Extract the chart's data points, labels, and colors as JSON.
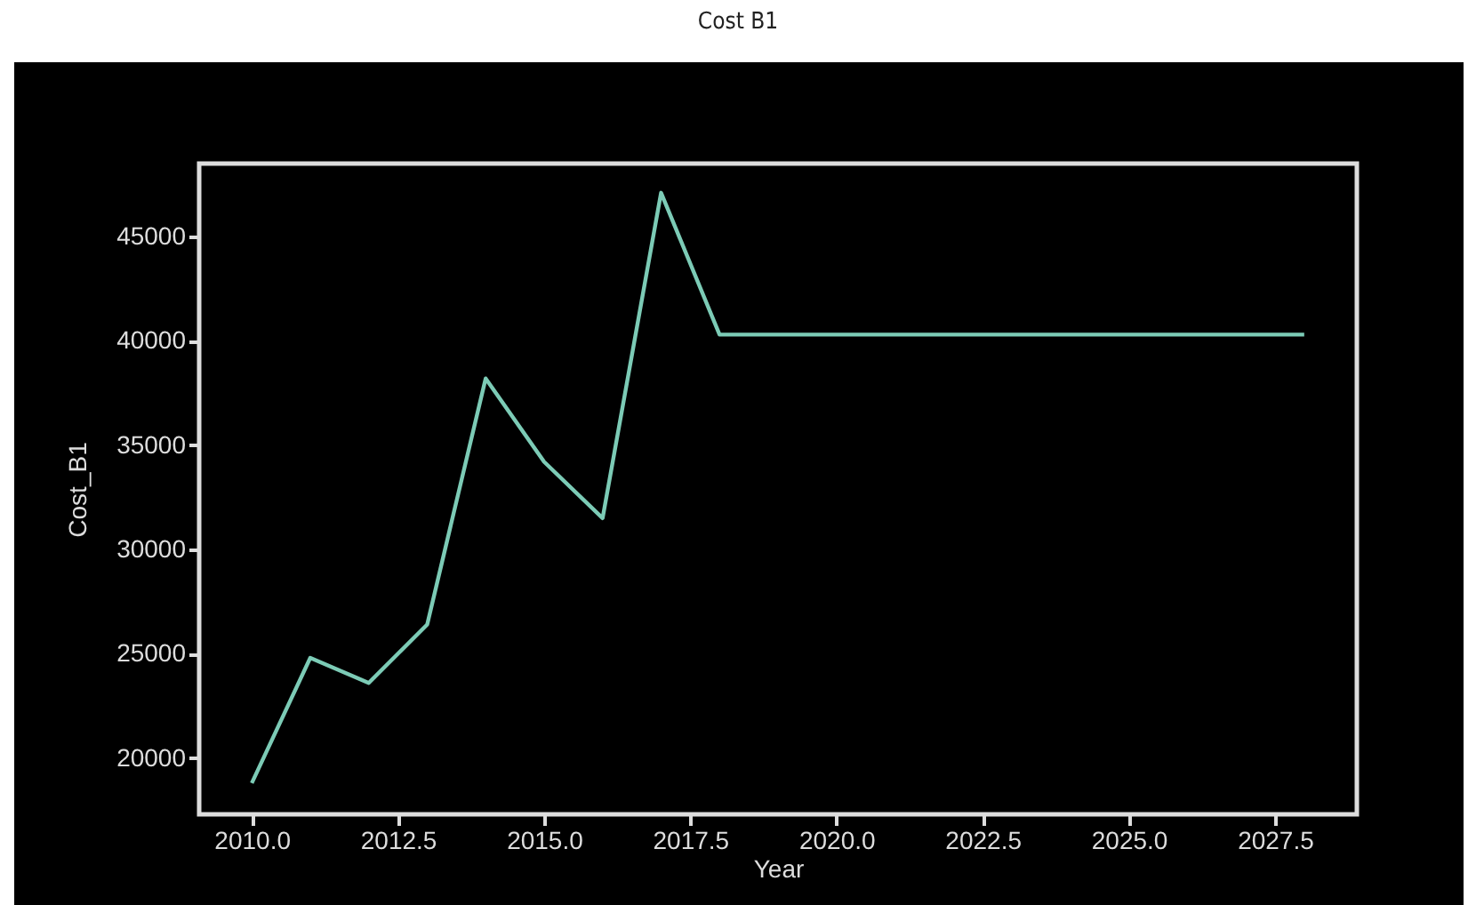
{
  "chart_data": {
    "type": "line",
    "title": "Cost B1",
    "xlabel": "Year",
    "ylabel": "Cost_B1",
    "x": [
      2010,
      2011,
      2012,
      2013,
      2014,
      2015,
      2016,
      2017,
      2018,
      2019,
      2020,
      2021,
      2022,
      2023,
      2024,
      2025,
      2026,
      2027,
      2028
    ],
    "series": [
      {
        "color": "#7ccbb6",
        "values": [
          18800,
          24800,
          23600,
          26400,
          38200,
          34200,
          31500,
          47100,
          40300,
          40300,
          40300,
          40300,
          40300,
          40300,
          40300,
          40300,
          40300,
          40300,
          40300
        ]
      }
    ],
    "xlim": [
      2009.1,
      2028.9
    ],
    "ylim": [
      17300,
      48500
    ],
    "xticks": [
      {
        "value": 2010,
        "label": "2010.0"
      },
      2012.5,
      {
        "value": 2015,
        "label": "2015.0"
      },
      2017.5,
      {
        "value": 2020,
        "label": "2020.0"
      },
      2022.5,
      {
        "value": 2025,
        "label": "2025.0"
      },
      2027.5
    ],
    "yticks": [
      20000,
      25000,
      30000,
      35000,
      40000,
      45000
    ]
  }
}
